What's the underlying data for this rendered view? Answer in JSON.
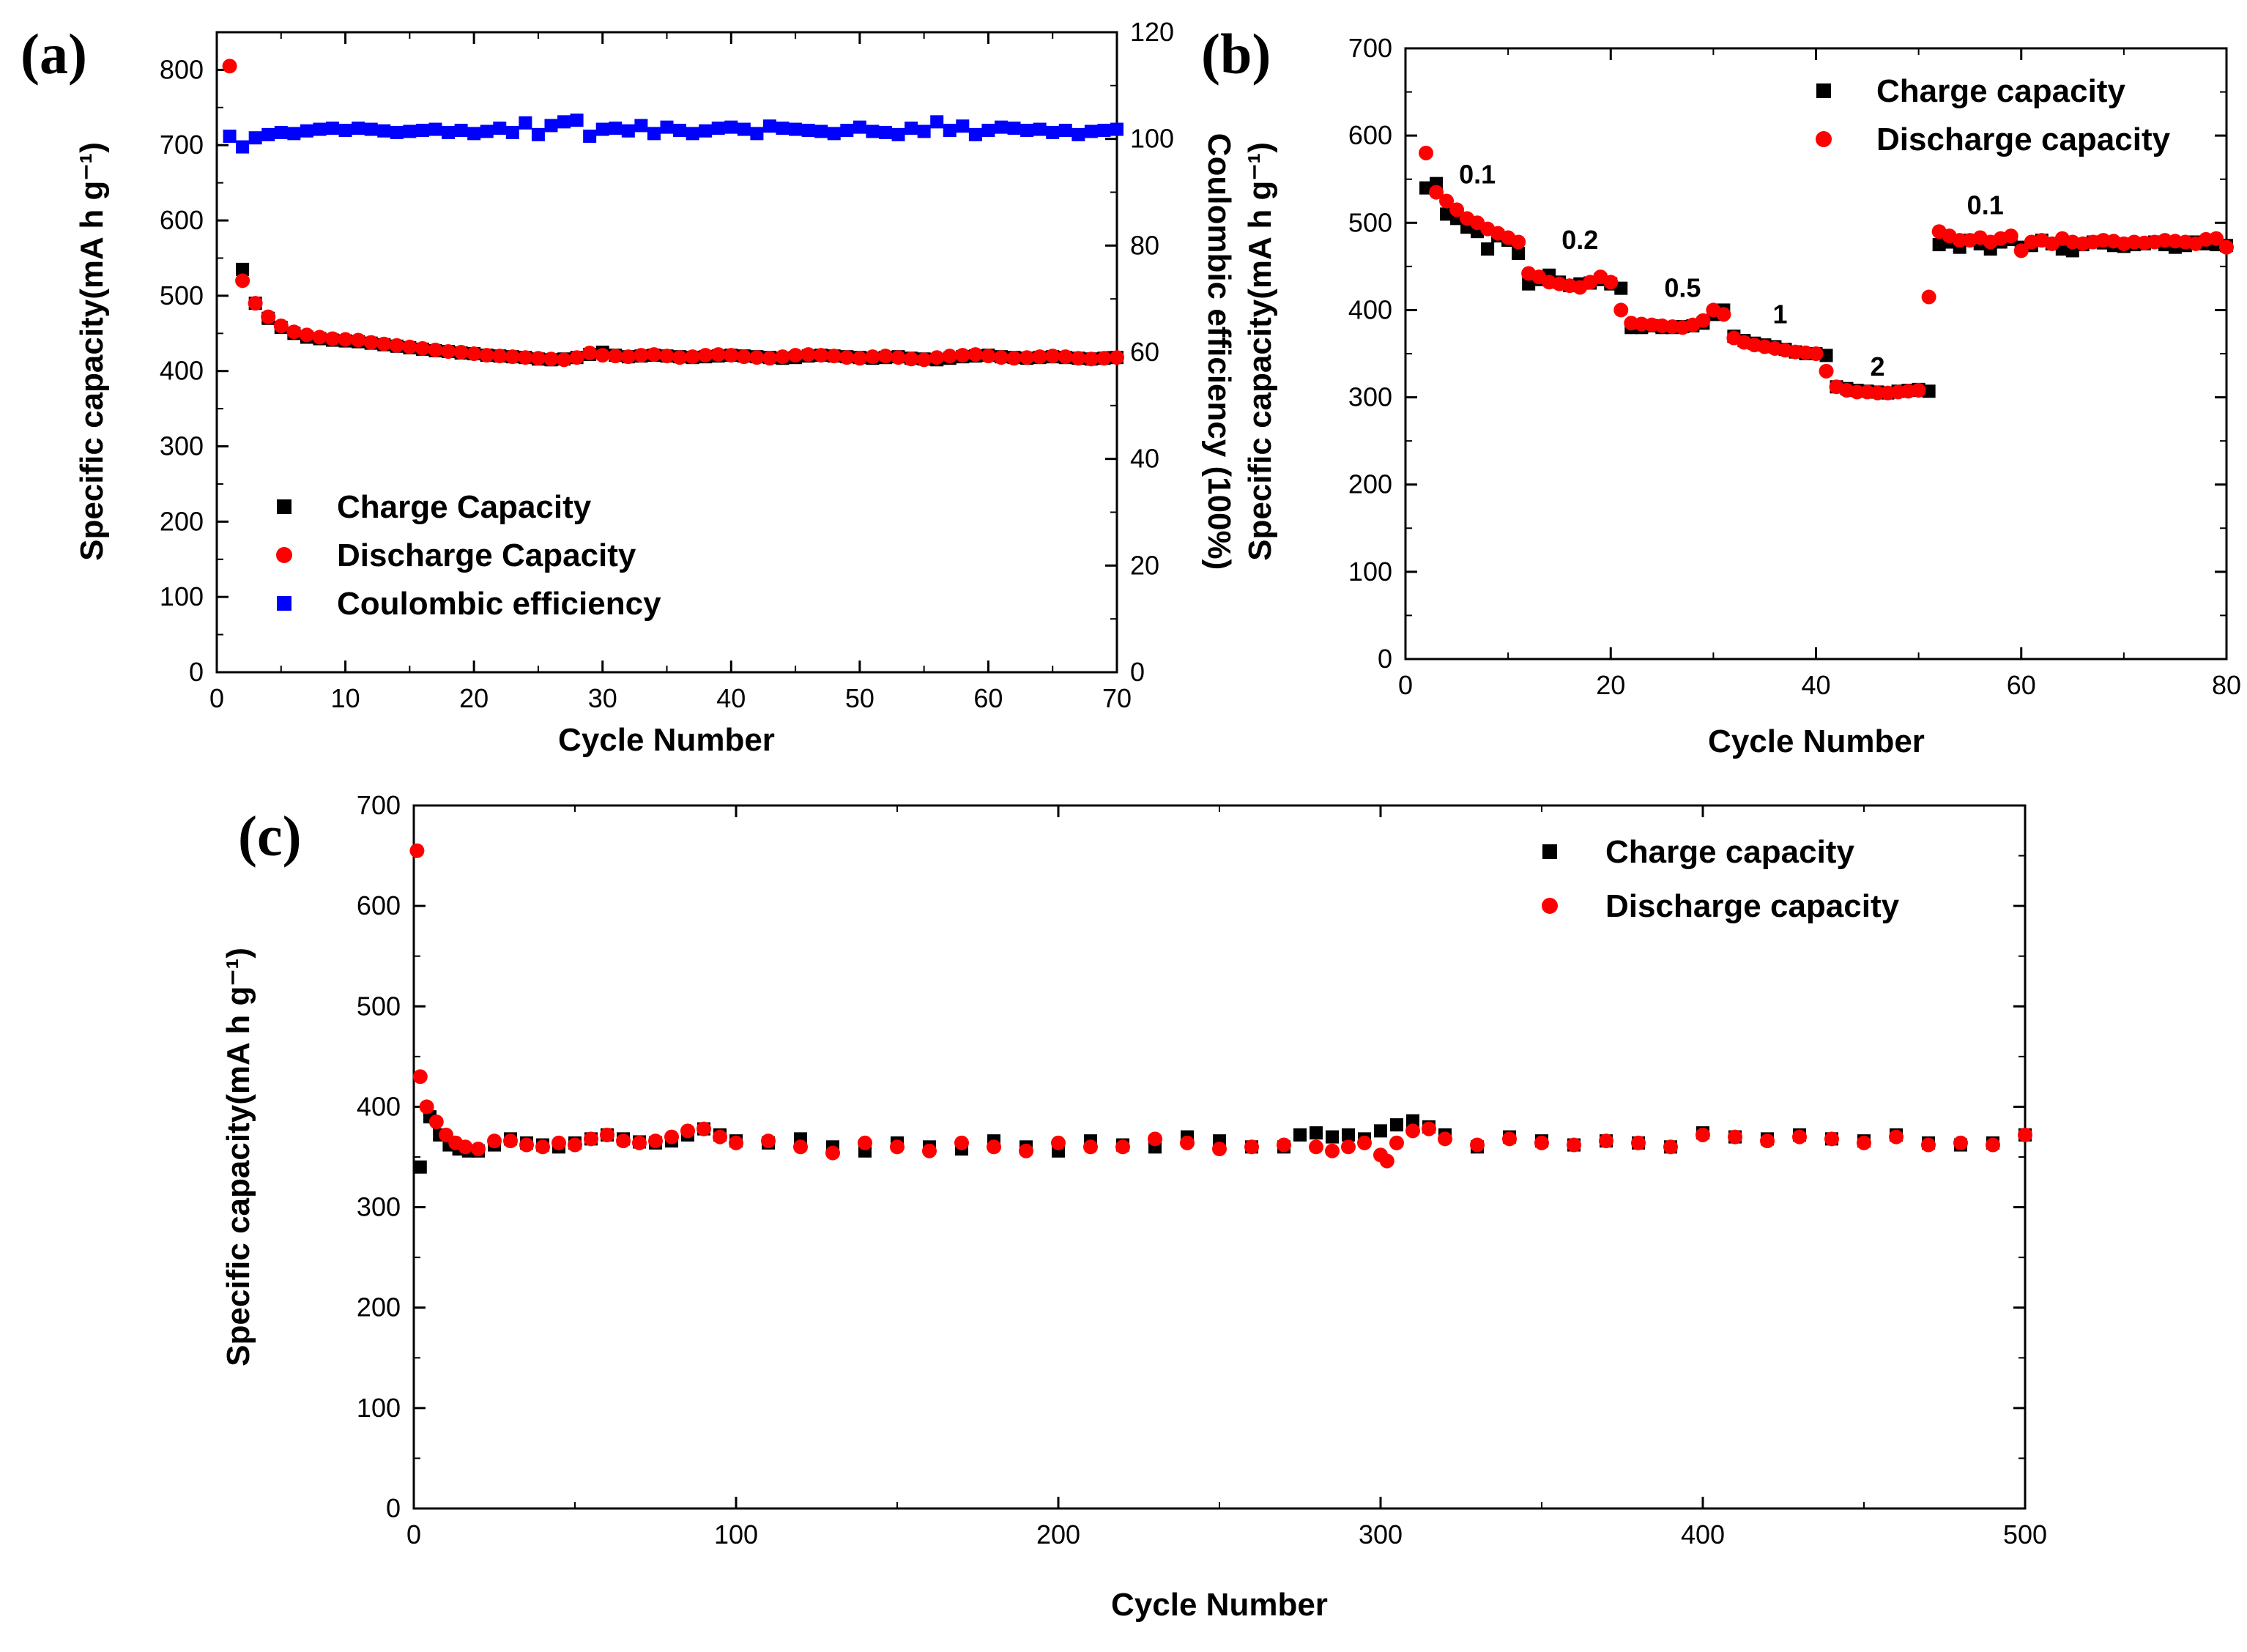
{
  "colors": {
    "charge": "#000000",
    "discharge": "#ff0000",
    "coulombic": "#0000ff",
    "axis": "#000000"
  },
  "chart_data": [
    {
      "id": "a",
      "panel_label": "(a)",
      "type": "scatter",
      "xlabel": "Cycle Number",
      "ylabel": "Specific capacity(mA h g⁻¹)",
      "y2label": "Coulombic efficiency (100%)",
      "xlim": [
        0,
        70
      ],
      "ylim": [
        0,
        850
      ],
      "y2lim": [
        0,
        120
      ],
      "xticks": [
        0,
        10,
        20,
        30,
        40,
        50,
        60,
        70
      ],
      "yticks": [
        0,
        100,
        200,
        300,
        400,
        500,
        600,
        700,
        800
      ],
      "y2ticks": [
        0,
        20,
        40,
        60,
        80,
        100,
        120
      ],
      "legend_position": "center-left",
      "series": [
        {
          "name": "Charge Capacity",
          "marker": "square",
          "color": "charge",
          "axis": "left",
          "x_start": 2,
          "values": [
            535,
            490,
            470,
            458,
            450,
            445,
            443,
            441,
            440,
            439,
            437,
            435,
            433,
            431,
            429,
            427,
            426,
            424,
            423,
            421,
            420,
            419,
            418,
            416,
            415,
            416,
            418,
            422,
            425,
            421,
            419,
            420,
            421,
            420,
            419,
            418,
            419,
            420,
            421,
            420,
            419,
            418,
            417,
            418,
            420,
            421,
            420,
            419,
            418,
            417,
            418,
            419,
            417,
            416,
            415,
            417,
            419,
            420,
            421,
            419,
            418,
            417,
            418,
            419,
            418,
            417,
            416,
            417,
            418
          ]
        },
        {
          "name": "Discharge Capacity",
          "marker": "circle",
          "color": "discharge",
          "axis": "left",
          "x_start": 1,
          "values": [
            805,
            520,
            490,
            472,
            460,
            452,
            448,
            445,
            443,
            442,
            441,
            438,
            436,
            434,
            432,
            430,
            428,
            426,
            425,
            423,
            421,
            420,
            419,
            418,
            417,
            416,
            415,
            418,
            424,
            421,
            420,
            419,
            421,
            422,
            420,
            418,
            419,
            421,
            422,
            421,
            419,
            418,
            417,
            419,
            421,
            422,
            421,
            420,
            418,
            417,
            419,
            420,
            418,
            416,
            415,
            418,
            420,
            421,
            422,
            420,
            418,
            417,
            418,
            419,
            420,
            419,
            417,
            416,
            417,
            418
          ]
        },
        {
          "name": "Coulombic efficiency",
          "marker": "square",
          "color": "coulombic",
          "axis": "right",
          "x_start": 1,
          "values": [
            100.5,
            98.5,
            100.2,
            100.8,
            101.2,
            101.0,
            101.5,
            101.8,
            102.0,
            101.6,
            102.0,
            101.8,
            101.5,
            101.2,
            101.4,
            101.6,
            101.8,
            101.2,
            101.6,
            101.0,
            101.4,
            102.0,
            101.2,
            103.0,
            100.8,
            102.5,
            103.2,
            103.5,
            100.5,
            101.8,
            102.0,
            101.5,
            102.5,
            101.0,
            102.2,
            101.6,
            101.0,
            101.5,
            102.0,
            102.2,
            101.8,
            101.0,
            102.4,
            102.0,
            101.8,
            101.6,
            101.4,
            101.0,
            101.6,
            102.2,
            101.4,
            101.2,
            100.8,
            102.0,
            101.4,
            103.2,
            101.6,
            102.4,
            100.8,
            101.6,
            102.2,
            102.0,
            101.6,
            101.8,
            101.2,
            101.6,
            100.8,
            101.4,
            101.6,
            101.8
          ]
        }
      ],
      "legend": [
        "Charge Capacity",
        "Discharge Capacity",
        "Coulombic efficiency"
      ]
    },
    {
      "id": "b",
      "panel_label": "(b)",
      "type": "scatter",
      "xlabel": "Cycle Number",
      "ylabel": "Specific capacity(mA h g⁻¹)",
      "xlim": [
        0,
        80
      ],
      "ylim": [
        0,
        700
      ],
      "xticks": [
        0,
        20,
        40,
        60,
        80
      ],
      "yticks": [
        0,
        100,
        200,
        300,
        400,
        500,
        600,
        700
      ],
      "legend_position": "top-right",
      "annotations": [
        {
          "text": "0.1",
          "x": 7,
          "y": 545
        },
        {
          "text": "0.2",
          "x": 17,
          "y": 470
        },
        {
          "text": "0.5",
          "x": 27,
          "y": 415
        },
        {
          "text": "1",
          "x": 36.5,
          "y": 385
        },
        {
          "text": "2",
          "x": 46,
          "y": 325
        },
        {
          "text": "0.1",
          "x": 56.5,
          "y": 510
        }
      ],
      "series": [
        {
          "name": "Charge capacity",
          "marker": "square",
          "color": "charge",
          "x_start": 2,
          "values": [
            540,
            545,
            510,
            505,
            495,
            490,
            470,
            485,
            480,
            465,
            430,
            435,
            440,
            432,
            428,
            430,
            431,
            435,
            430,
            425,
            380,
            380,
            382,
            380,
            380,
            381,
            382,
            385,
            395,
            400,
            370,
            365,
            362,
            360,
            358,
            355,
            352,
            350,
            350,
            348,
            312,
            310,
            308,
            307,
            306,
            305,
            307,
            308,
            309,
            307,
            475,
            478,
            472,
            480,
            476,
            470,
            478,
            481,
            472,
            474,
            480,
            476,
            470,
            468,
            475,
            478,
            477,
            474,
            473,
            475,
            476,
            478,
            475,
            472,
            474,
            478,
            476,
            475,
            474
          ]
        },
        {
          "name": "Discharge capacity",
          "marker": "circle",
          "color": "discharge",
          "x_start": 2,
          "values": [
            580,
            535,
            525,
            515,
            505,
            500,
            493,
            488,
            483,
            478,
            442,
            438,
            432,
            430,
            428,
            426,
            432,
            438,
            432,
            400,
            385,
            384,
            383,
            382,
            381,
            380,
            383,
            388,
            400,
            395,
            368,
            363,
            360,
            358,
            356,
            354,
            352,
            351,
            350,
            330,
            312,
            308,
            306,
            306,
            305,
            305,
            306,
            307,
            308,
            415,
            490,
            485,
            480,
            480,
            483,
            478,
            482,
            485,
            468,
            478,
            480,
            476,
            482,
            478,
            476,
            478,
            480,
            479,
            476,
            478,
            477,
            478,
            480,
            479,
            478,
            476,
            481,
            482,
            472
          ]
        }
      ],
      "legend": [
        "Charge capacity",
        "Discharge capacity"
      ]
    },
    {
      "id": "c",
      "panel_label": "(c)",
      "type": "scatter",
      "xlabel": "Cycle Number",
      "ylabel": "Specific capacity(mA h g⁻¹)",
      "xlim": [
        0,
        500
      ],
      "ylim": [
        0,
        700
      ],
      "xticks": [
        0,
        100,
        200,
        300,
        400,
        500
      ],
      "yticks": [
        0,
        100,
        200,
        300,
        400,
        500,
        600,
        700
      ],
      "legend_position": "top-right",
      "series": [
        {
          "name": "Charge capacity",
          "marker": "square",
          "color": "charge",
          "x_points": [
            2,
            5,
            8,
            11,
            14,
            17,
            20,
            25,
            30,
            35,
            40,
            45,
            50,
            55,
            60,
            65,
            70,
            75,
            80,
            85,
            90,
            95,
            100,
            110,
            120,
            130,
            140,
            150,
            160,
            170,
            180,
            190,
            200,
            210,
            220,
            230,
            240,
            250,
            260,
            270,
            275,
            280,
            285,
            290,
            295,
            300,
            305,
            310,
            315,
            320,
            330,
            340,
            350,
            360,
            370,
            380,
            390,
            400,
            410,
            420,
            430,
            440,
            450,
            460,
            470,
            480,
            490,
            500
          ],
          "values": [
            340,
            390,
            372,
            362,
            358,
            356,
            356,
            362,
            368,
            364,
            362,
            360,
            364,
            368,
            372,
            368,
            365,
            364,
            366,
            372,
            378,
            372,
            366,
            364,
            368,
            360,
            356,
            364,
            360,
            358,
            366,
            360,
            356,
            366,
            362,
            360,
            370,
            366,
            360,
            360,
            372,
            374,
            370,
            372,
            368,
            376,
            382,
            386,
            380,
            372,
            360,
            370,
            366,
            362,
            366,
            364,
            360,
            374,
            370,
            368,
            372,
            368,
            366,
            372,
            364,
            362,
            364,
            372
          ]
        },
        {
          "name": "Discharge capacity",
          "marker": "circle",
          "color": "discharge",
          "x_points": [
            1,
            2,
            4,
            7,
            10,
            13,
            16,
            20,
            25,
            30,
            35,
            40,
            45,
            50,
            55,
            60,
            65,
            70,
            75,
            80,
            85,
            90,
            95,
            100,
            110,
            120,
            130,
            140,
            150,
            160,
            170,
            180,
            190,
            200,
            210,
            220,
            230,
            240,
            250,
            260,
            270,
            280,
            285,
            290,
            295,
            300,
            302,
            305,
            310,
            315,
            320,
            330,
            340,
            350,
            360,
            370,
            380,
            390,
            400,
            410,
            420,
            430,
            440,
            450,
            460,
            470,
            480,
            490,
            500
          ],
          "values": [
            655,
            430,
            400,
            385,
            372,
            364,
            360,
            358,
            366,
            366,
            362,
            360,
            364,
            362,
            368,
            372,
            366,
            364,
            366,
            370,
            376,
            378,
            370,
            364,
            366,
            360,
            354,
            364,
            360,
            356,
            364,
            360,
            356,
            364,
            360,
            360,
            368,
            364,
            358,
            360,
            362,
            360,
            356,
            360,
            364,
            352,
            346,
            364,
            376,
            378,
            368,
            362,
            368,
            364,
            362,
            366,
            364,
            360,
            372,
            370,
            366,
            370,
            368,
            364,
            370,
            362,
            364,
            362,
            372
          ]
        }
      ],
      "legend": [
        "Charge capacity",
        "Discharge capacity"
      ]
    }
  ]
}
